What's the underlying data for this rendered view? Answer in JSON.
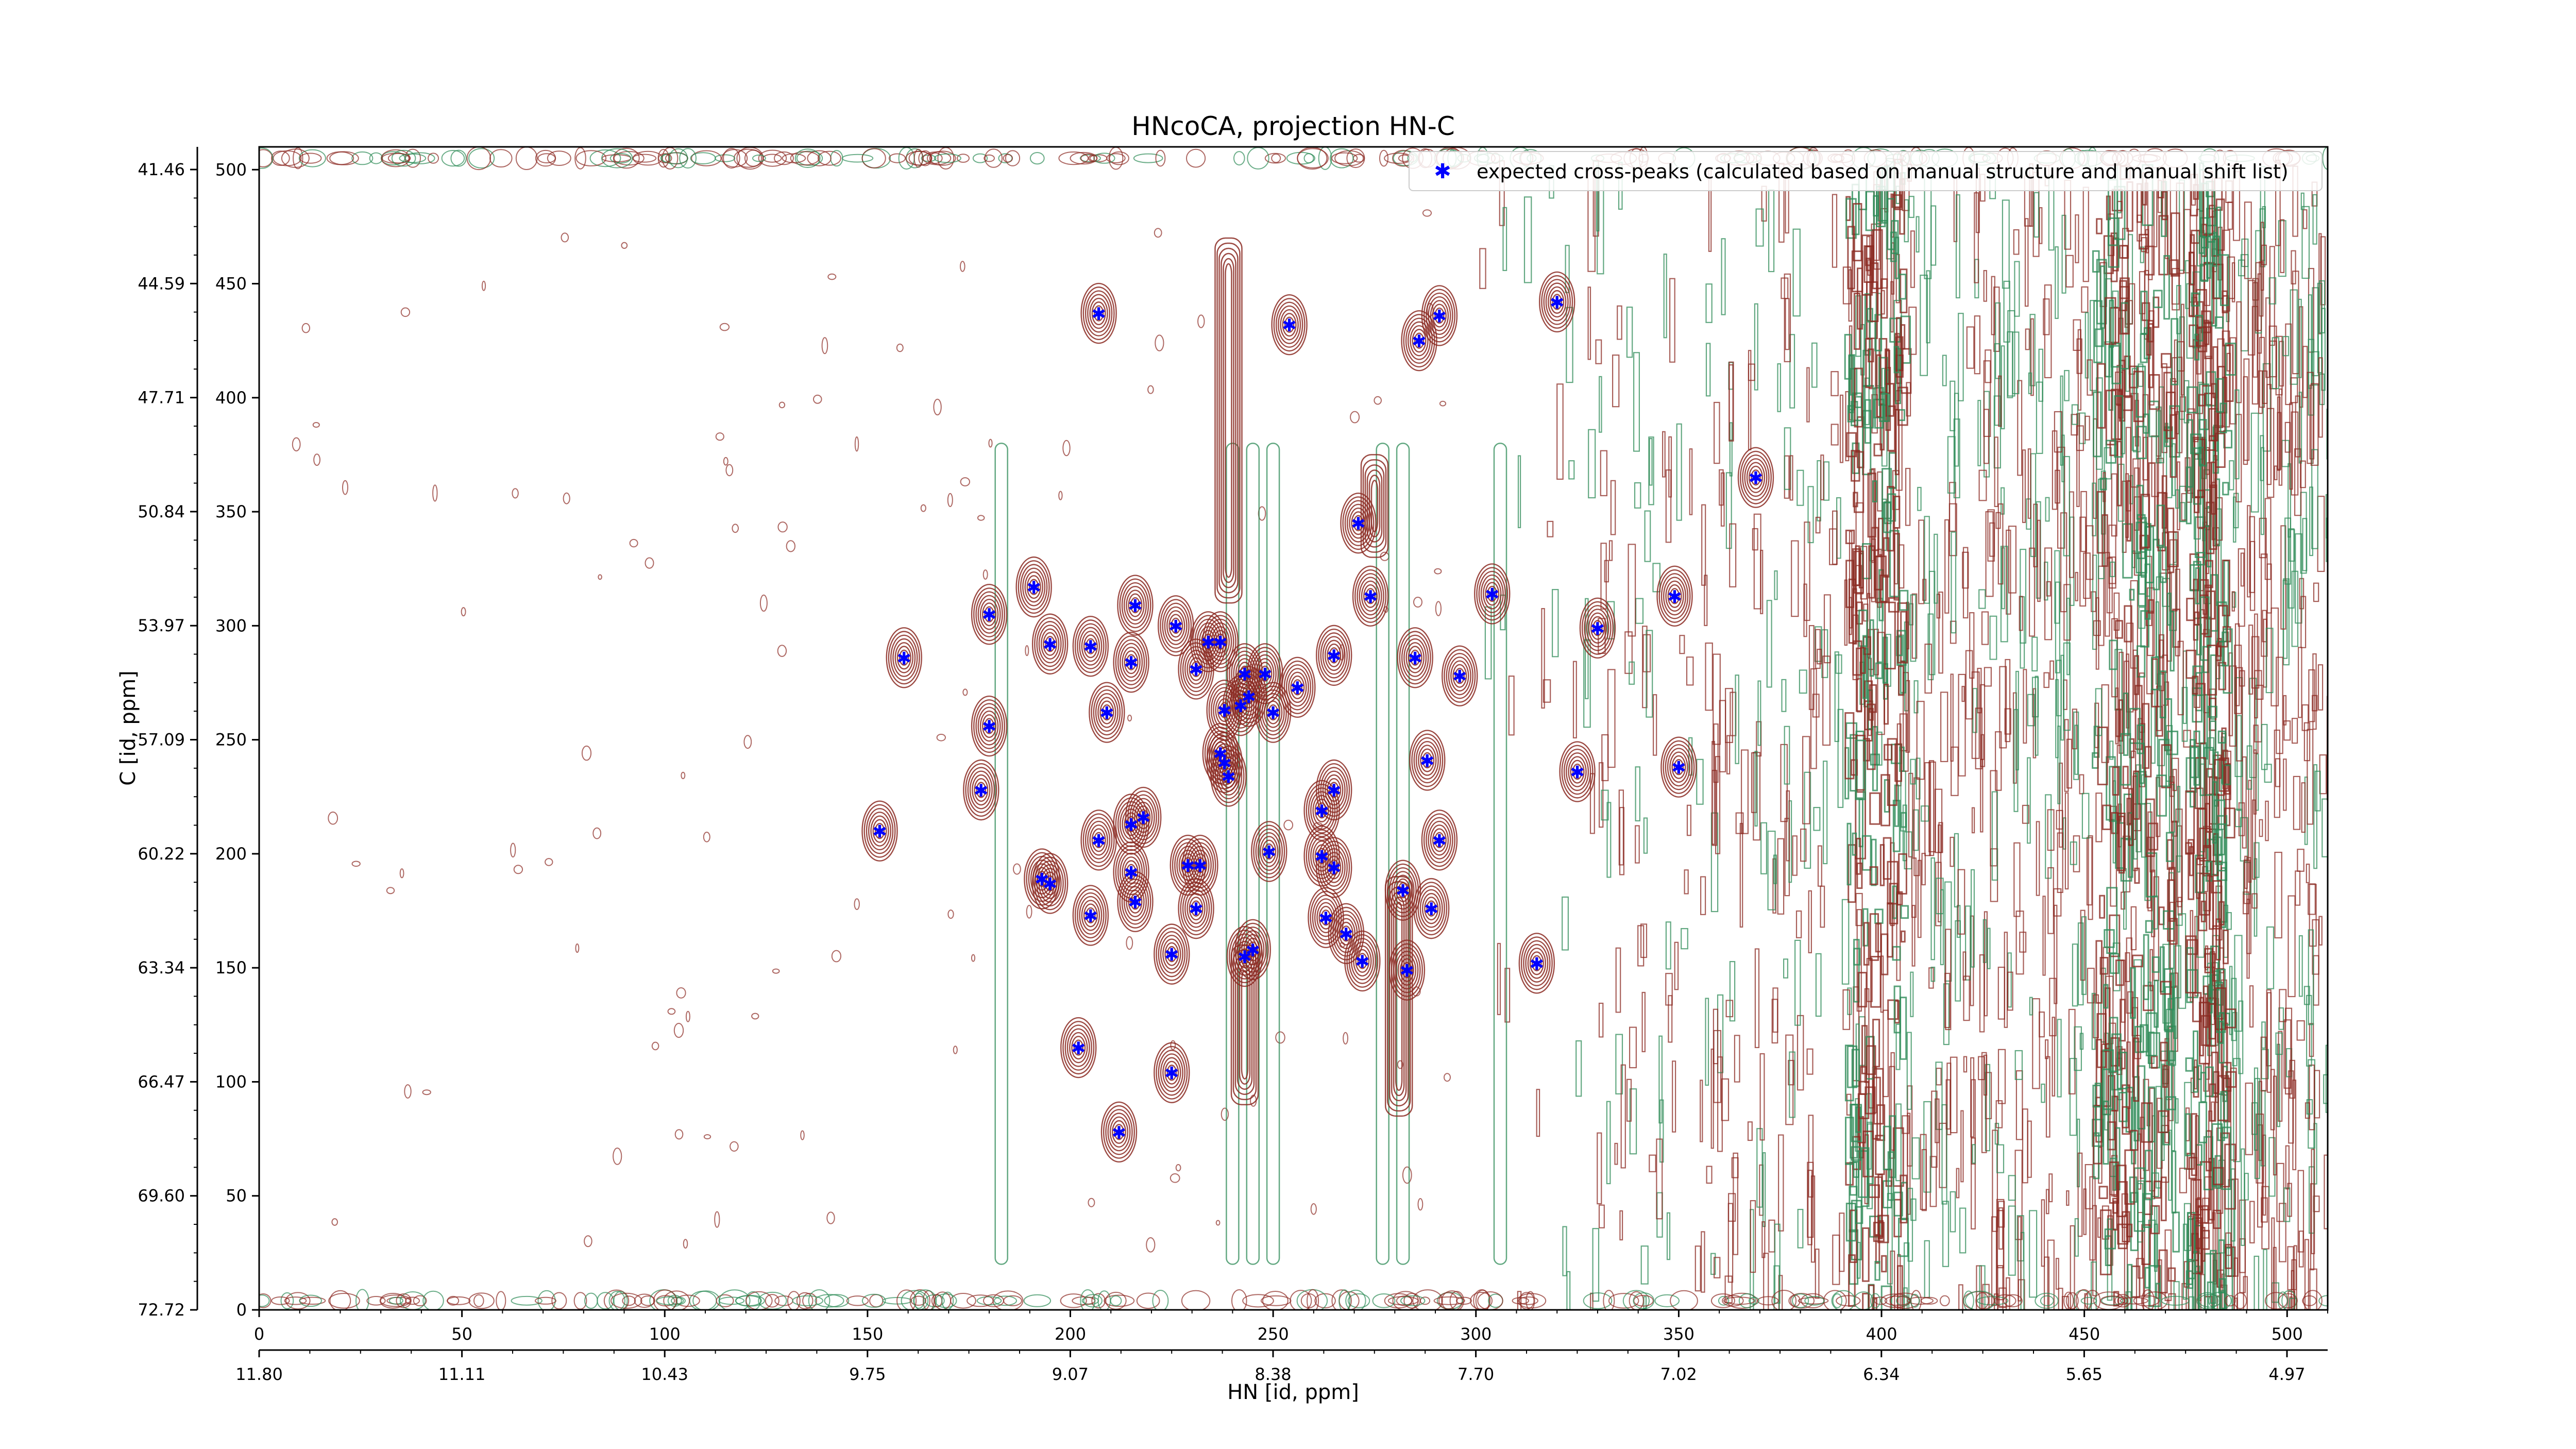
{
  "chart_data": {
    "type": "scatter",
    "title": "HNcoCA, projection HN-C",
    "xlabel": "HN [id, ppm]",
    "ylabel": "C [id, ppm]",
    "x_index_range": [
      0,
      510
    ],
    "y_index_range": [
      0,
      510
    ],
    "x_index_ticks": [
      "0",
      "50",
      "100",
      "150",
      "200",
      "250",
      "300",
      "350",
      "400",
      "450",
      "500"
    ],
    "y_index_ticks": [
      "0",
      "50",
      "100",
      "150",
      "200",
      "250",
      "300",
      "350",
      "400",
      "450",
      "500"
    ],
    "x_ppm_ticks": [
      "11.80",
      "11.11",
      "10.43",
      "9.75",
      "9.07",
      "8.38",
      "7.70",
      "7.02",
      "6.34",
      "5.65",
      "4.97"
    ],
    "y_ppm_ticks": [
      "72.72",
      "69.60",
      "66.47",
      "63.34",
      "60.22",
      "57.09",
      "53.97",
      "50.84",
      "47.71",
      "44.59",
      "41.46"
    ],
    "legend": {
      "location": "top-right",
      "entries": [
        {
          "label": "expected cross-peaks (calculated based on manual structure and manual shift list)",
          "color": "#0000ff",
          "marker": "star"
        }
      ]
    },
    "contour_colors": {
      "positive": "#8b2a22",
      "negative": "#2e8b57"
    },
    "series": [
      {
        "name": "expected cross-peaks (calculated based on manual structure and manual shift list)",
        "points": [
          {
            "x": 207,
            "y": 437
          },
          {
            "x": 254,
            "y": 432
          },
          {
            "x": 291,
            "y": 436
          },
          {
            "x": 286,
            "y": 425
          },
          {
            "x": 320,
            "y": 442
          },
          {
            "x": 369,
            "y": 365
          },
          {
            "x": 271,
            "y": 345
          },
          {
            "x": 191,
            "y": 317
          },
          {
            "x": 274,
            "y": 313
          },
          {
            "x": 304,
            "y": 314
          },
          {
            "x": 349,
            "y": 313
          },
          {
            "x": 180,
            "y": 305
          },
          {
            "x": 216,
            "y": 309
          },
          {
            "x": 226,
            "y": 300
          },
          {
            "x": 330,
            "y": 299
          },
          {
            "x": 195,
            "y": 292
          },
          {
            "x": 205,
            "y": 291
          },
          {
            "x": 234,
            "y": 293
          },
          {
            "x": 237,
            "y": 293
          },
          {
            "x": 159,
            "y": 286
          },
          {
            "x": 215,
            "y": 284
          },
          {
            "x": 231,
            "y": 281
          },
          {
            "x": 243,
            "y": 279
          },
          {
            "x": 248,
            "y": 279
          },
          {
            "x": 265,
            "y": 287
          },
          {
            "x": 285,
            "y": 286
          },
          {
            "x": 296,
            "y": 278
          },
          {
            "x": 256,
            "y": 273
          },
          {
            "x": 244,
            "y": 269
          },
          {
            "x": 242,
            "y": 265
          },
          {
            "x": 238,
            "y": 263
          },
          {
            "x": 250,
            "y": 262
          },
          {
            "x": 209,
            "y": 262
          },
          {
            "x": 180,
            "y": 256
          },
          {
            "x": 237,
            "y": 244
          },
          {
            "x": 238,
            "y": 240
          },
          {
            "x": 239,
            "y": 234
          },
          {
            "x": 288,
            "y": 241
          },
          {
            "x": 325,
            "y": 236
          },
          {
            "x": 350,
            "y": 238
          },
          {
            "x": 178,
            "y": 228
          },
          {
            "x": 265,
            "y": 228
          },
          {
            "x": 262,
            "y": 219
          },
          {
            "x": 218,
            "y": 216
          },
          {
            "x": 215,
            "y": 213
          },
          {
            "x": 153,
            "y": 210
          },
          {
            "x": 207,
            "y": 206
          },
          {
            "x": 291,
            "y": 206
          },
          {
            "x": 249,
            "y": 201
          },
          {
            "x": 262,
            "y": 199
          },
          {
            "x": 229,
            "y": 195
          },
          {
            "x": 232,
            "y": 195
          },
          {
            "x": 265,
            "y": 194
          },
          {
            "x": 215,
            "y": 192
          },
          {
            "x": 193,
            "y": 189
          },
          {
            "x": 195,
            "y": 187
          },
          {
            "x": 282,
            "y": 184
          },
          {
            "x": 216,
            "y": 179
          },
          {
            "x": 231,
            "y": 176
          },
          {
            "x": 289,
            "y": 176
          },
          {
            "x": 205,
            "y": 173
          },
          {
            "x": 263,
            "y": 172
          },
          {
            "x": 268,
            "y": 165
          },
          {
            "x": 245,
            "y": 158
          },
          {
            "x": 243,
            "y": 155
          },
          {
            "x": 225,
            "y": 156
          },
          {
            "x": 272,
            "y": 153
          },
          {
            "x": 315,
            "y": 152
          },
          {
            "x": 283,
            "y": 149
          },
          {
            "x": 202,
            "y": 115
          },
          {
            "x": 225,
            "y": 104
          },
          {
            "x": 212,
            "y": 78
          }
        ]
      }
    ]
  }
}
